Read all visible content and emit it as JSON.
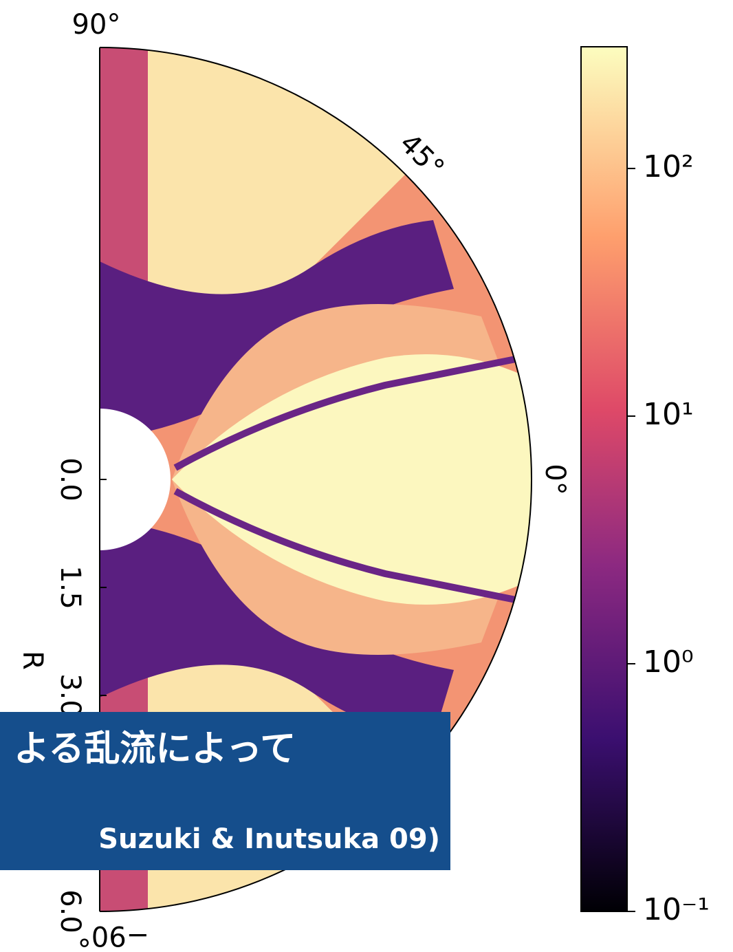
{
  "chart_data": {
    "type": "polar-heatmap",
    "angle_labels": [
      "90°",
      "45°",
      "0°",
      "−90°"
    ],
    "radial_axis": {
      "label": "R",
      "lim": [
        0,
        6
      ],
      "ticks": [
        {
          "value": 0,
          "label": "0.0"
        },
        {
          "value": 1.5,
          "label": "1.5"
        },
        {
          "value": 3,
          "label": "3.0"
        },
        {
          "value": 6,
          "label": "6.0"
        }
      ]
    },
    "colorbar": {
      "scale": "log",
      "lim": [
        0.1,
        310
      ],
      "ticks": [
        {
          "value": 0.1,
          "label": "10⁻¹"
        },
        {
          "value": 1,
          "label": "10⁰"
        },
        {
          "value": 10,
          "label": "10¹"
        },
        {
          "value": 100,
          "label": "10²"
        }
      ]
    }
  },
  "caption": {
    "line1": "よる乱流によって",
    "line2": "Suzuki & Inutsuka 09)"
  }
}
